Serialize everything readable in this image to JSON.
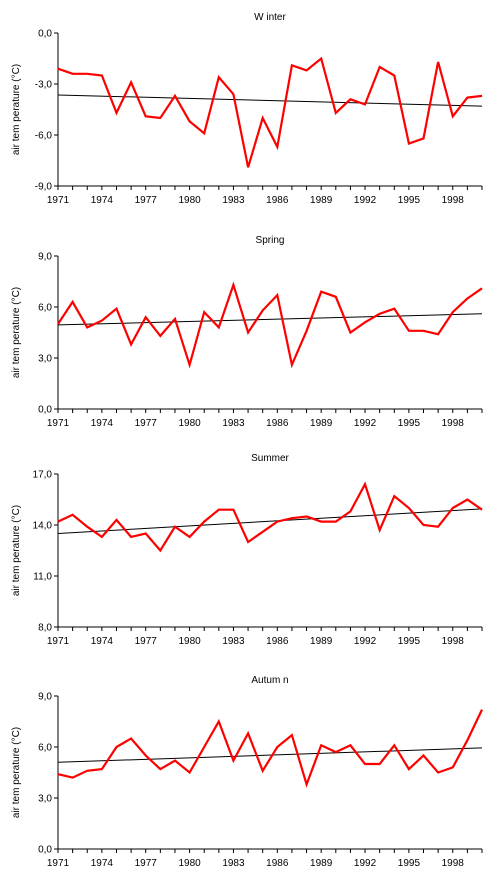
{
  "chart_data": [
    {
      "type": "line",
      "title": "W inter",
      "ylabel": "air tem perature (°C)",
      "ylim": [
        -9,
        0
      ],
      "xlim": [
        1971,
        2000
      ],
      "yticks": [
        0,
        -3,
        -6,
        -9
      ],
      "ytick_labels": [
        "0,0",
        "-3,0",
        "-6,0",
        "-9,0"
      ],
      "xticks": [
        1971,
        1974,
        1977,
        1980,
        1983,
        1986,
        1989,
        1992,
        1995,
        1998
      ],
      "xtick_labels": [
        "1971",
        "1974",
        "1977",
        "1980",
        "1983",
        "1986",
        "1989",
        "1992",
        "1995",
        "1998"
      ],
      "series": [
        {
          "color": "#ff0000",
          "x": [
            1971,
            1972,
            1973,
            1974,
            1975,
            1976,
            1977,
            1978,
            1979,
            1980,
            1981,
            1982,
            1983,
            1984,
            1985,
            1986,
            1987,
            1988,
            1989,
            1990,
            1991,
            1992,
            1993,
            1994,
            1995,
            1996,
            1997,
            1998,
            1999,
            2000
          ],
          "y": [
            -2.1,
            -2.4,
            -2.4,
            -2.5,
            -4.7,
            -2.9,
            -4.9,
            -5.0,
            -3.7,
            -5.2,
            -5.9,
            -2.6,
            -3.6,
            -7.9,
            -5.0,
            -6.7,
            -1.9,
            -2.2,
            -1.5,
            -4.7,
            -3.9,
            -4.2,
            -2.0,
            -2.5,
            -6.5,
            -6.2,
            -1.7,
            -4.9,
            -3.8,
            -3.7
          ]
        },
        {
          "color": "#000000",
          "x": [
            1971,
            2000
          ],
          "y": [
            -3.65,
            -4.3
          ]
        }
      ]
    },
    {
      "type": "line",
      "title": "Spring",
      "ylabel": "air tem perature (°C)",
      "ylim": [
        0,
        9
      ],
      "xlim": [
        1971,
        2000
      ],
      "yticks": [
        9,
        6,
        3,
        0
      ],
      "ytick_labels": [
        "9,0",
        "6,0",
        "3,0",
        "0,0"
      ],
      "xticks": [
        1971,
        1974,
        1977,
        1980,
        1983,
        1986,
        1989,
        1992,
        1995,
        1998
      ],
      "xtick_labels": [
        "1971",
        "1974",
        "1977",
        "1980",
        "1983",
        "1986",
        "1989",
        "1992",
        "1995",
        "1998"
      ],
      "series": [
        {
          "color": "#ff0000",
          "x": [
            1971,
            1972,
            1973,
            1974,
            1975,
            1976,
            1977,
            1978,
            1979,
            1980,
            1981,
            1982,
            1983,
            1984,
            1985,
            1986,
            1987,
            1988,
            1989,
            1990,
            1991,
            1992,
            1993,
            1994,
            1995,
            1996,
            1997,
            1998,
            1999,
            2000
          ],
          "y": [
            5.0,
            6.3,
            4.8,
            5.2,
            5.9,
            3.8,
            5.4,
            4.3,
            5.3,
            2.6,
            5.7,
            4.8,
            7.3,
            4.5,
            5.8,
            6.7,
            2.6,
            4.6,
            6.9,
            6.6,
            4.5,
            5.1,
            5.6,
            5.9,
            4.6,
            4.6,
            4.4,
            5.7,
            6.5,
            7.1
          ]
        },
        {
          "color": "#000000",
          "x": [
            1971,
            2000
          ],
          "y": [
            4.95,
            5.6
          ]
        }
      ]
    },
    {
      "type": "line",
      "title": "Summer",
      "ylabel": "air tem perature (°C)",
      "ylim": [
        8,
        17
      ],
      "xlim": [
        1971,
        2000
      ],
      "yticks": [
        17,
        14,
        11,
        8
      ],
      "ytick_labels": [
        "17,0",
        "14,0",
        "11,0",
        "8,0"
      ],
      "xticks": [
        1971,
        1974,
        1977,
        1980,
        1983,
        1986,
        1989,
        1992,
        1995,
        1998
      ],
      "xtick_labels": [
        "1971",
        "1974",
        "1977",
        "1980",
        "1983",
        "1986",
        "1989",
        "1992",
        "1995",
        "1998"
      ],
      "series": [
        {
          "color": "#ff0000",
          "x": [
            1971,
            1972,
            1973,
            1974,
            1975,
            1976,
            1977,
            1978,
            1979,
            1980,
            1981,
            1982,
            1983,
            1984,
            1985,
            1986,
            1987,
            1988,
            1989,
            1990,
            1991,
            1992,
            1993,
            1994,
            1995,
            1996,
            1997,
            1998,
            1999,
            2000
          ],
          "y": [
            14.2,
            14.6,
            13.9,
            13.3,
            14.3,
            13.3,
            13.5,
            12.5,
            13.9,
            13.3,
            14.2,
            14.9,
            14.9,
            13.0,
            13.6,
            14.2,
            14.4,
            14.5,
            14.2,
            14.2,
            14.8,
            16.4,
            13.7,
            15.7,
            15.0,
            14.0,
            13.9,
            15.0,
            15.5,
            14.9
          ]
        },
        {
          "color": "#000000",
          "x": [
            1971,
            2000
          ],
          "y": [
            13.5,
            14.95
          ]
        }
      ]
    },
    {
      "type": "line",
      "title": "Autum n",
      "ylabel": "air tem perature (°C)",
      "ylim": [
        0,
        9
      ],
      "xlim": [
        1971,
        2000
      ],
      "yticks": [
        9,
        6,
        3,
        0
      ],
      "ytick_labels": [
        "9,0",
        "6,0",
        "3,0",
        "0,0"
      ],
      "xticks": [
        1971,
        1974,
        1977,
        1980,
        1983,
        1986,
        1989,
        1992,
        1995,
        1998
      ],
      "xtick_labels": [
        "1971",
        "1974",
        "1977",
        "1980",
        "1983",
        "1986",
        "1989",
        "1992",
        "1995",
        "1998"
      ],
      "series": [
        {
          "color": "#ff0000",
          "x": [
            1971,
            1972,
            1973,
            1974,
            1975,
            1976,
            1977,
            1978,
            1979,
            1980,
            1981,
            1982,
            1983,
            1984,
            1985,
            1986,
            1987,
            1988,
            1989,
            1990,
            1991,
            1992,
            1993,
            1994,
            1995,
            1996,
            1997,
            1998,
            1999,
            2000
          ],
          "y": [
            4.4,
            4.2,
            4.6,
            4.7,
            6.0,
            6.5,
            5.5,
            4.7,
            5.2,
            4.5,
            6.0,
            7.5,
            5.2,
            6.8,
            4.6,
            6.0,
            6.7,
            3.8,
            6.1,
            5.7,
            6.1,
            5.0,
            5.0,
            6.1,
            4.7,
            5.5,
            4.5,
            4.8,
            6.4,
            8.2
          ]
        },
        {
          "color": "#000000",
          "x": [
            1971,
            2000
          ],
          "y": [
            5.1,
            5.95
          ]
        }
      ]
    }
  ]
}
